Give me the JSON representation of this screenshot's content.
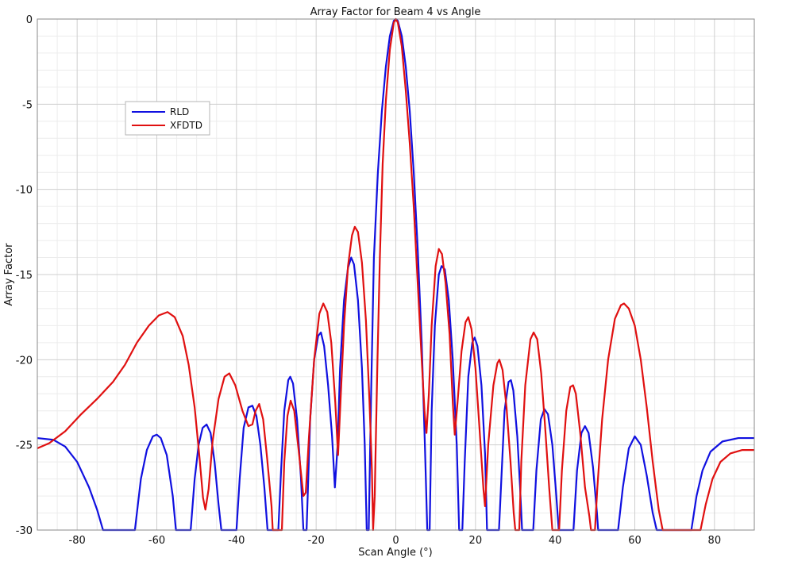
{
  "chart_data": {
    "type": "line",
    "title": "Array Factor for Beam 4 vs Angle",
    "xlabel": "Scan Angle (°)",
    "ylabel": "Array Factor",
    "xlim": [
      -90,
      90
    ],
    "ylim": [
      -30,
      0
    ],
    "xticks": [
      -80,
      -60,
      -40,
      -20,
      0,
      20,
      40,
      60,
      80
    ],
    "yticks": [
      0,
      -5,
      -10,
      -15,
      -20,
      -25,
      -30
    ],
    "grid": true,
    "legend_position": "upper-left",
    "series": [
      {
        "name": "RLD",
        "color": "#1010e0",
        "points": [
          [
            -90,
            -24.6
          ],
          [
            -86,
            -24.7
          ],
          [
            -83,
            -25.1
          ],
          [
            -80,
            -26.0
          ],
          [
            -77,
            -27.5
          ],
          [
            -75,
            -28.8
          ],
          [
            -73.5,
            -30
          ],
          [
            -65.5,
            -30
          ],
          [
            -64,
            -27.0
          ],
          [
            -62.5,
            -25.3
          ],
          [
            -61,
            -24.5
          ],
          [
            -60,
            -24.4
          ],
          [
            -59,
            -24.6
          ],
          [
            -57.5,
            -25.6
          ],
          [
            -56,
            -28.0
          ],
          [
            -55.2,
            -30
          ],
          [
            -51.5,
            -30
          ],
          [
            -50.5,
            -27.0
          ],
          [
            -49.5,
            -25.0
          ],
          [
            -48.5,
            -24.0
          ],
          [
            -47.5,
            -23.8
          ],
          [
            -46.5,
            -24.3
          ],
          [
            -45.5,
            -26.0
          ],
          [
            -44.5,
            -28.5
          ],
          [
            -43.8,
            -30
          ],
          [
            -40,
            -30
          ],
          [
            -39.2,
            -27.0
          ],
          [
            -38.2,
            -24.0
          ],
          [
            -37,
            -22.8
          ],
          [
            -36,
            -22.7
          ],
          [
            -35,
            -23.3
          ],
          [
            -34,
            -25.0
          ],
          [
            -33,
            -27.5
          ],
          [
            -32.2,
            -30
          ],
          [
            -29.5,
            -30
          ],
          [
            -28.8,
            -26.5
          ],
          [
            -28,
            -23.0
          ],
          [
            -27,
            -21.2
          ],
          [
            -26.5,
            -21.0
          ],
          [
            -25.8,
            -21.4
          ],
          [
            -24.8,
            -23.5
          ],
          [
            -23.8,
            -27.0
          ],
          [
            -23.2,
            -30
          ],
          [
            -22.4,
            -30
          ],
          [
            -21.5,
            -23.5
          ],
          [
            -20.5,
            -20.0
          ],
          [
            -19.5,
            -18.6
          ],
          [
            -18.8,
            -18.4
          ],
          [
            -18.0,
            -19.2
          ],
          [
            -17,
            -21.5
          ],
          [
            -16,
            -24.5
          ],
          [
            -15.3,
            -27.5
          ],
          [
            -14.6,
            -25.0
          ],
          [
            -14,
            -20.5
          ],
          [
            -13,
            -16.5
          ],
          [
            -12,
            -14.6
          ],
          [
            -11.2,
            -14.0
          ],
          [
            -10.5,
            -14.4
          ],
          [
            -9.5,
            -16.5
          ],
          [
            -8.5,
            -20.5
          ],
          [
            -7.8,
            -25.0
          ],
          [
            -7.3,
            -30
          ],
          [
            -6.8,
            -30
          ],
          [
            -6.2,
            -22.0
          ],
          [
            -5.5,
            -14.0
          ],
          [
            -4.5,
            -9.0
          ],
          [
            -3.5,
            -5.4
          ],
          [
            -2.5,
            -2.8
          ],
          [
            -1.5,
            -1.0
          ],
          [
            -0.5,
            -0.1
          ],
          [
            0,
            0
          ],
          [
            0.5,
            -0.1
          ],
          [
            1.5,
            -1.0
          ],
          [
            2.5,
            -2.8
          ],
          [
            3.5,
            -5.4
          ],
          [
            4.5,
            -9.0
          ],
          [
            5.5,
            -13.5
          ],
          [
            6.5,
            -19.0
          ],
          [
            7.3,
            -25.0
          ],
          [
            7.9,
            -30
          ],
          [
            8.5,
            -30
          ],
          [
            9.0,
            -23.0
          ],
          [
            9.8,
            -18.0
          ],
          [
            10.8,
            -15.0
          ],
          [
            11.5,
            -14.5
          ],
          [
            12.3,
            -14.7
          ],
          [
            13.3,
            -16.5
          ],
          [
            14.3,
            -20.0
          ],
          [
            15.3,
            -25.0
          ],
          [
            15.9,
            -30
          ],
          [
            16.7,
            -30
          ],
          [
            17.3,
            -26.0
          ],
          [
            18.2,
            -21.0
          ],
          [
            19.2,
            -19.0
          ],
          [
            19.8,
            -18.7
          ],
          [
            20.5,
            -19.2
          ],
          [
            21.5,
            -21.5
          ],
          [
            22.4,
            -25.5
          ],
          [
            22.9,
            -30
          ],
          [
            25.9,
            -30
          ],
          [
            26.5,
            -27.0
          ],
          [
            27.3,
            -23.0
          ],
          [
            28.3,
            -21.3
          ],
          [
            28.9,
            -21.2
          ],
          [
            29.5,
            -21.8
          ],
          [
            30.5,
            -24.5
          ],
          [
            31.2,
            -27.5
          ],
          [
            31.7,
            -30
          ],
          [
            34.5,
            -30
          ],
          [
            35.3,
            -26.5
          ],
          [
            36.4,
            -23.5
          ],
          [
            37.3,
            -22.9
          ],
          [
            38.2,
            -23.2
          ],
          [
            39.3,
            -25.0
          ],
          [
            40.3,
            -28.0
          ],
          [
            40.9,
            -30
          ],
          [
            44.6,
            -30
          ],
          [
            45.5,
            -26.5
          ],
          [
            46.6,
            -24.3
          ],
          [
            47.5,
            -23.9
          ],
          [
            48.4,
            -24.3
          ],
          [
            49.5,
            -26.3
          ],
          [
            50.5,
            -29.0
          ],
          [
            50.8,
            -30
          ],
          [
            55.8,
            -30
          ],
          [
            57,
            -27.5
          ],
          [
            58.5,
            -25.2
          ],
          [
            60,
            -24.5
          ],
          [
            61.5,
            -25.0
          ],
          [
            63,
            -26.8
          ],
          [
            64.5,
            -29.0
          ],
          [
            65.5,
            -30
          ],
          [
            74.2,
            -30
          ],
          [
            75.5,
            -28.0
          ],
          [
            77,
            -26.5
          ],
          [
            79,
            -25.4
          ],
          [
            82,
            -24.8
          ],
          [
            86,
            -24.6
          ],
          [
            90,
            -24.6
          ]
        ]
      },
      {
        "name": "XFDTD",
        "color": "#e01010",
        "points": [
          [
            -90,
            -25.2
          ],
          [
            -87,
            -24.9
          ],
          [
            -83,
            -24.2
          ],
          [
            -79,
            -23.2
          ],
          [
            -75,
            -22.3
          ],
          [
            -71,
            -21.3
          ],
          [
            -68,
            -20.3
          ],
          [
            -65,
            -19.0
          ],
          [
            -62,
            -18.0
          ],
          [
            -59.5,
            -17.4
          ],
          [
            -57.3,
            -17.2
          ],
          [
            -55.5,
            -17.5
          ],
          [
            -53.5,
            -18.6
          ],
          [
            -52,
            -20.3
          ],
          [
            -50.5,
            -22.8
          ],
          [
            -49.3,
            -25.7
          ],
          [
            -48.4,
            -28.1
          ],
          [
            -47.8,
            -28.8
          ],
          [
            -47.0,
            -27.6
          ],
          [
            -46.0,
            -24.8
          ],
          [
            -44.5,
            -22.3
          ],
          [
            -43,
            -21.0
          ],
          [
            -41.8,
            -20.8
          ],
          [
            -40.3,
            -21.5
          ],
          [
            -38.5,
            -23.0
          ],
          [
            -37,
            -23.9
          ],
          [
            -36,
            -23.8
          ],
          [
            -35.2,
            -23.0
          ],
          [
            -34.3,
            -22.6
          ],
          [
            -33.3,
            -23.5
          ],
          [
            -32.3,
            -25.8
          ],
          [
            -31.2,
            -28.6
          ],
          [
            -30.9,
            -30
          ],
          [
            -28.6,
            -30
          ],
          [
            -28,
            -26.0
          ],
          [
            -27.2,
            -23.3
          ],
          [
            -26.4,
            -22.4
          ],
          [
            -25.5,
            -23.0
          ],
          [
            -24.4,
            -25.3
          ],
          [
            -23.2,
            -28.0
          ],
          [
            -22.6,
            -27.8
          ],
          [
            -21.8,
            -24.5
          ],
          [
            -20.5,
            -20.0
          ],
          [
            -19.2,
            -17.3
          ],
          [
            -18.2,
            -16.7
          ],
          [
            -17.2,
            -17.2
          ],
          [
            -16.2,
            -19.0
          ],
          [
            -15.2,
            -22.5
          ],
          [
            -14.5,
            -25.6
          ],
          [
            -13.8,
            -22.0
          ],
          [
            -13.0,
            -18.0
          ],
          [
            -12.0,
            -14.5
          ],
          [
            -11.0,
            -12.7
          ],
          [
            -10.3,
            -12.2
          ],
          [
            -9.5,
            -12.5
          ],
          [
            -8.5,
            -14.3
          ],
          [
            -7.5,
            -17.7
          ],
          [
            -6.6,
            -22.5
          ],
          [
            -6.0,
            -26.5
          ],
          [
            -5.7,
            -30
          ],
          [
            -5.3,
            -28.0
          ],
          [
            -4.6,
            -20.0
          ],
          [
            -4.0,
            -14.0
          ],
          [
            -3.3,
            -8.5
          ],
          [
            -2.5,
            -4.8
          ],
          [
            -1.5,
            -1.8
          ],
          [
            -0.5,
            -0.2
          ],
          [
            0,
            0
          ],
          [
            0.5,
            -0.2
          ],
          [
            1.5,
            -1.6
          ],
          [
            2.5,
            -4.2
          ],
          [
            3.5,
            -7.3
          ],
          [
            4.5,
            -11.0
          ],
          [
            5.5,
            -15.5
          ],
          [
            6.5,
            -20.0
          ],
          [
            7.2,
            -23.0
          ],
          [
            7.7,
            -24.3
          ],
          [
            8.3,
            -22.0
          ],
          [
            9.0,
            -18.0
          ],
          [
            10.0,
            -14.5
          ],
          [
            10.8,
            -13.5
          ],
          [
            11.6,
            -13.8
          ],
          [
            12.5,
            -15.5
          ],
          [
            13.5,
            -18.5
          ],
          [
            14.3,
            -22.5
          ],
          [
            14.8,
            -24.4
          ],
          [
            15.5,
            -22.5
          ],
          [
            16.5,
            -19.5
          ],
          [
            17.5,
            -17.8
          ],
          [
            18.2,
            -17.5
          ],
          [
            19.0,
            -18.2
          ],
          [
            20.0,
            -20.5
          ],
          [
            21.0,
            -24.0
          ],
          [
            22.0,
            -27.6
          ],
          [
            22.4,
            -28.6
          ],
          [
            23.2,
            -25.0
          ],
          [
            24.5,
            -21.5
          ],
          [
            25.5,
            -20.2
          ],
          [
            26.0,
            -20.0
          ],
          [
            26.8,
            -20.6
          ],
          [
            27.8,
            -22.8
          ],
          [
            28.8,
            -26.0
          ],
          [
            29.6,
            -29.0
          ],
          [
            30.0,
            -30
          ],
          [
            31.0,
            -30
          ],
          [
            31.5,
            -26.0
          ],
          [
            32.5,
            -21.5
          ],
          [
            33.8,
            -18.8
          ],
          [
            34.6,
            -18.4
          ],
          [
            35.5,
            -18.8
          ],
          [
            36.5,
            -20.8
          ],
          [
            37.5,
            -24.0
          ],
          [
            38.5,
            -27.5
          ],
          [
            39.3,
            -30
          ],
          [
            41.0,
            -30
          ],
          [
            41.7,
            -26.5
          ],
          [
            42.8,
            -23.0
          ],
          [
            43.8,
            -21.6
          ],
          [
            44.5,
            -21.5
          ],
          [
            45.2,
            -22.0
          ],
          [
            46.3,
            -24.3
          ],
          [
            47.5,
            -27.5
          ],
          [
            48.6,
            -29.2
          ],
          [
            49.0,
            -30
          ],
          [
            50.0,
            -30
          ],
          [
            50.6,
            -27.5
          ],
          [
            51.8,
            -23.5
          ],
          [
            53.3,
            -20.0
          ],
          [
            55,
            -17.6
          ],
          [
            56.5,
            -16.8
          ],
          [
            57.3,
            -16.7
          ],
          [
            58.5,
            -17.0
          ],
          [
            60,
            -18.0
          ],
          [
            61.5,
            -20.0
          ],
          [
            63,
            -22.8
          ],
          [
            64.5,
            -26.0
          ],
          [
            66,
            -28.8
          ],
          [
            67,
            -30
          ],
          [
            76.5,
            -30
          ],
          [
            77.8,
            -28.5
          ],
          [
            79.5,
            -27.0
          ],
          [
            81.5,
            -26.0
          ],
          [
            84,
            -25.5
          ],
          [
            87,
            -25.3
          ],
          [
            90,
            -25.3
          ]
        ]
      }
    ]
  }
}
